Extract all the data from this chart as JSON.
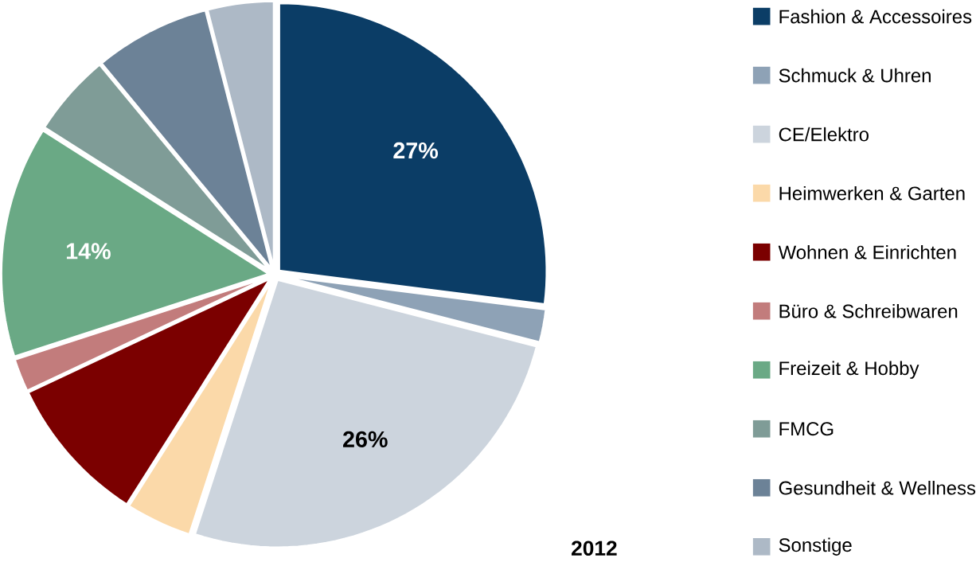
{
  "chart_data": {
    "type": "pie",
    "categories": [
      "Fashion & Accessoires",
      "Schmuck & Uhren",
      "CE/Elektro",
      "Heimwerken & Garten",
      "Wohnen & Einrichten",
      "Büro & Schreibwaren",
      "Freizeit & Hobby",
      "FMCG",
      "Gesundheit & Wellness",
      "Sonstige"
    ],
    "values": [
      27,
      2,
      26,
      4,
      9,
      2,
      14,
      5,
      7,
      4
    ],
    "value_labels": [
      "27%",
      null,
      "26%",
      null,
      null,
      null,
      "14%",
      null,
      null,
      null
    ],
    "colors": [
      "#0b3d66",
      "#8ea2b6",
      "#ccd4dd",
      "#fbd9a9",
      "#7b0000",
      "#c27c7c",
      "#6aa985",
      "#7f9c97",
      "#6c8297",
      "#adb9c6"
    ],
    "legend": "right",
    "annotations": [
      "2012"
    ]
  }
}
